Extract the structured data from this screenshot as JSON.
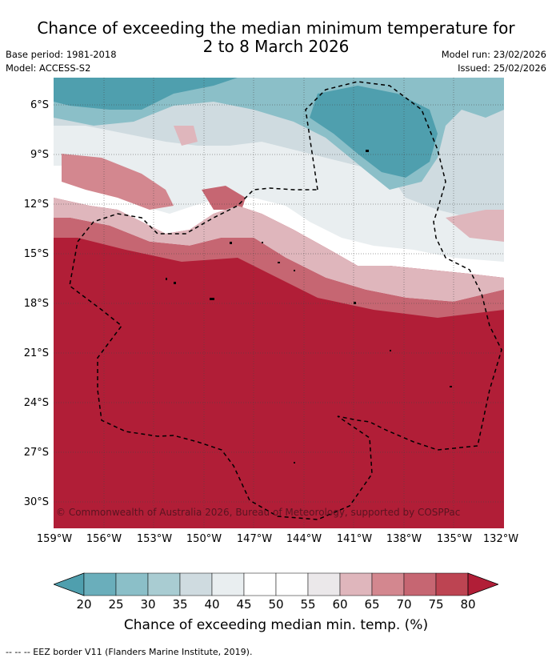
{
  "title_line1": "Chance of exceeding the median minimum temperature for",
  "title_line2": "2 to 8 March 2026",
  "base_period": "Base period: 1981-2018",
  "model": "Model: ACCESS-S2",
  "model_run": "Model run: 23/02/2026",
  "issued": "Issued: 25/02/2026",
  "lat_ticks": [
    "6°S",
    "9°S",
    "12°S",
    "15°S",
    "18°S",
    "21°S",
    "24°S",
    "27°S",
    "30°S"
  ],
  "lon_ticks": [
    "159°W",
    "156°W",
    "153°W",
    "150°W",
    "147°W",
    "144°W",
    "141°W",
    "138°W",
    "135°W",
    "132°W"
  ],
  "copyright": "© Commonwealth of Australia 2026, Bureau of Meteorology, supported by COSPPac",
  "colorbar": {
    "labels": [
      "20",
      "25",
      "30",
      "35",
      "40",
      "45",
      "50",
      "55",
      "60",
      "65",
      "70",
      "75",
      "80"
    ],
    "colors": [
      "#4f9fae",
      "#6aaebb",
      "#8bbfc8",
      "#a9ccd2",
      "#cfdbe0",
      "#e9eef0",
      "#ffffff",
      "#ffffff",
      "#ebe8ea",
      "#dfb6bc",
      "#d3878f",
      "#c66672",
      "#bd4452",
      "#b11e37"
    ],
    "title": "Chance of exceeding median min. temp. (%)"
  },
  "legend_text": "--  --  -- EEZ border V11 (Flanders Marine Institute, 2019)."
}
